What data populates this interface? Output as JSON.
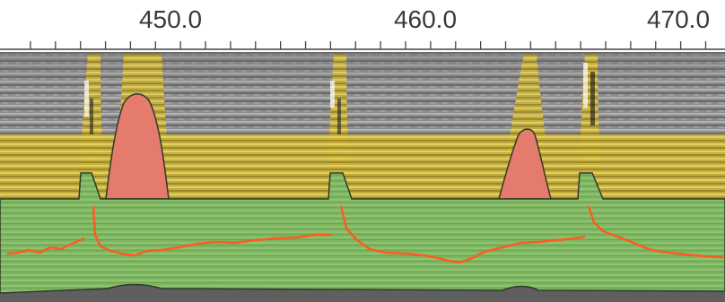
{
  "ruler": {
    "labels": [
      "450.0",
      "460.0",
      "470.0"
    ],
    "label_values": [
      450.0,
      460.0,
      470.0
    ],
    "minor_tick_step": 1.0,
    "range": [
      444.5,
      472.7
    ]
  },
  "colors": {
    "background": "#ffffff",
    "ruler_line": "#444444",
    "label_text": "#3a3a3a",
    "seismic_gray": "#8c8c8c",
    "yellow_band": "#d9c23a",
    "green_region": "#80b866",
    "red_peak": "#e07a6a",
    "orange_trace": "#ff5a1f",
    "outline": "#2f3a2a"
  },
  "icons": []
}
